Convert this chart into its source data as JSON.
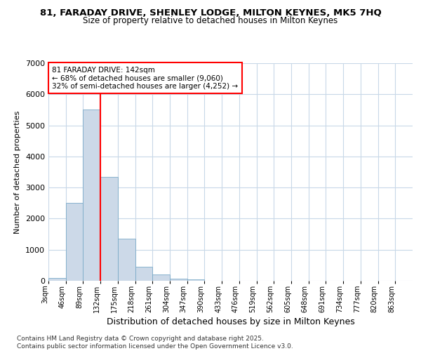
{
  "title1": "81, FARADAY DRIVE, SHENLEY LODGE, MILTON KEYNES, MK5 7HQ",
  "title2": "Size of property relative to detached houses in Milton Keynes",
  "xlabel": "Distribution of detached houses by size in Milton Keynes",
  "ylabel": "Number of detached properties",
  "bin_labels": [
    "3sqm",
    "46sqm",
    "89sqm",
    "132sqm",
    "175sqm",
    "218sqm",
    "261sqm",
    "304sqm",
    "347sqm",
    "390sqm",
    "433sqm",
    "476sqm",
    "519sqm",
    "562sqm",
    "605sqm",
    "648sqm",
    "691sqm",
    "734sqm",
    "777sqm",
    "820sqm",
    "863sqm"
  ],
  "bar_heights": [
    100,
    2500,
    5500,
    3350,
    1350,
    450,
    200,
    75,
    50,
    10,
    0,
    0,
    0,
    0,
    0,
    0,
    0,
    0,
    0,
    0,
    0
  ],
  "bar_color": "#ccd9e8",
  "bar_edge_color": "#7aaac8",
  "vline_x": 3,
  "vline_color": "red",
  "annotation_text": "81 FARADAY DRIVE: 142sqm\n← 68% of detached houses are smaller (9,060)\n32% of semi-detached houses are larger (4,252) →",
  "annotation_edge_color": "red",
  "ylim": [
    0,
    7000
  ],
  "yticks": [
    0,
    1000,
    2000,
    3000,
    4000,
    5000,
    6000,
    7000
  ],
  "footer": "Contains HM Land Registry data © Crown copyright and database right 2025.\nContains public sector information licensed under the Open Government Licence v3.0.",
  "bg_color": "#ffffff",
  "grid_color": "#c8d8e8"
}
